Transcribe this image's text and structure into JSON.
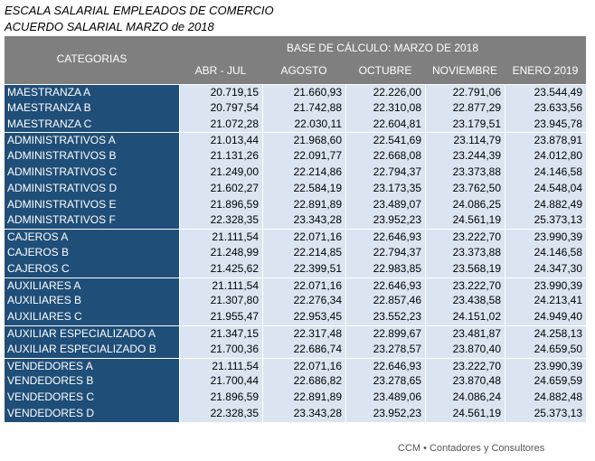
{
  "title": "ESCALA SALARIAL EMPLEADOS DE COMERCIO",
  "subtitle": "ACUERDO SALARIAL MARZO de 2018",
  "header": {
    "category": "CATEGORIAS",
    "base": "BASE DE CÁLCULO: MARZO DE 2018",
    "columns": [
      "ABR - JUL",
      "AGOSTO",
      "OCTUBRE",
      "NOVIEMBRE",
      "ENERO 2019"
    ]
  },
  "groups": [
    {
      "rows": [
        {
          "label": "MAESTRANZA A",
          "values": [
            "20.719,15",
            "21.660,93",
            "22.226,00",
            "22.791,06",
            "23.544,49"
          ]
        },
        {
          "label": "MAESTRANZA B",
          "values": [
            "20.797,54",
            "21.742,88",
            "22.310,08",
            "22.877,29",
            "23.633,56"
          ]
        },
        {
          "label": "MAESTRANZA C",
          "values": [
            "21.072,28",
            "22.030,11",
            "22.604,81",
            "23.179,51",
            "23.945,78"
          ]
        }
      ]
    },
    {
      "rows": [
        {
          "label": "ADMINISTRATIVOS A",
          "values": [
            "21.013,44",
            "21.968,60",
            "22.541,69",
            "23.114,79",
            "23.878,91"
          ]
        },
        {
          "label": "ADMINISTRATIVOS B",
          "values": [
            "21.131,26",
            "22.091,77",
            "22.668,08",
            "23.244,39",
            "24.012,80"
          ]
        },
        {
          "label": "ADMINISTRATIVOS C",
          "values": [
            "21.249,00",
            "22.214,86",
            "22.794,37",
            "23.373,88",
            "24.146,58"
          ]
        },
        {
          "label": "ADMINISTRATIVOS D",
          "values": [
            "21.602,27",
            "22.584,19",
            "23.173,35",
            "23.762,50",
            "24.548,04"
          ]
        },
        {
          "label": "ADMINISTRATIVOS E",
          "values": [
            "21.896,59",
            "22.891,89",
            "23.489,07",
            "24.086,25",
            "24.882,49"
          ]
        },
        {
          "label": "ADMINISTRATIVOS F",
          "values": [
            "22.328,35",
            "23.343,28",
            "23.952,23",
            "24.561,19",
            "25.373,13"
          ]
        }
      ]
    },
    {
      "rows": [
        {
          "label": "CAJEROS A",
          "values": [
            "21.111,54",
            "22.071,16",
            "22.646,93",
            "23.222,70",
            "23.990,39"
          ]
        },
        {
          "label": "CAJEROS B",
          "values": [
            "21.248,99",
            "22.214,85",
            "22.794,37",
            "23.373,88",
            "24.146,58"
          ]
        },
        {
          "label": "CAJEROS C",
          "values": [
            "21.425,62",
            "22.399,51",
            "22.983,85",
            "23.568,19",
            "24.347,30"
          ]
        }
      ]
    },
    {
      "rows": [
        {
          "label": "AUXILIARES A",
          "values": [
            "21.111,54",
            "22.071,16",
            "22.646,93",
            "23.222,70",
            "23.990,39"
          ]
        },
        {
          "label": "AUXILIARES B",
          "values": [
            "21.307,80",
            "22.276,34",
            "22.857,46",
            "23.438,58",
            "24.213,41"
          ]
        },
        {
          "label": "AUXILIARES C",
          "values": [
            "21.955,47",
            "22.953,45",
            "23.552,23",
            "24.151,02",
            "24.949,40"
          ]
        }
      ]
    },
    {
      "rows": [
        {
          "label": "AUXILIAR ESPECIALIZADO A",
          "values": [
            "21.347,15",
            "22.317,48",
            "22.899,67",
            "23.481,87",
            "24.258,13"
          ]
        },
        {
          "label": "AUXILIAR ESPECIALIZADO B",
          "values": [
            "21.700,36",
            "22.686,74",
            "23.278,57",
            "23.870,40",
            "24.659,50"
          ]
        }
      ]
    },
    {
      "rows": [
        {
          "label": "VENDEDORES A",
          "values": [
            "21.111,54",
            "22.071,16",
            "22.646,93",
            "23.222,70",
            "23.990,39"
          ]
        },
        {
          "label": "VENDEDORES B",
          "values": [
            "21.700,44",
            "22.686,82",
            "23.278,65",
            "23.870,48",
            "24.659,59"
          ]
        },
        {
          "label": "VENDEDORES C",
          "values": [
            "21.896,59",
            "22.891,89",
            "23.489,06",
            "24.086,24",
            "24.882,48"
          ]
        },
        {
          "label": "VENDEDORES D",
          "values": [
            "22.328,35",
            "23.343,28",
            "23.952,23",
            "24.561,19",
            "25.373,13"
          ]
        }
      ]
    }
  ],
  "footer": "CCM • Contadores y Consultores"
}
